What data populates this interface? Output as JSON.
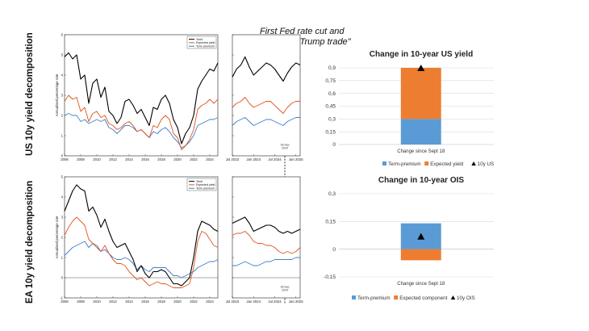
{
  "row_labels": {
    "us": "US 10y yield decomposition",
    "ea": "EA 10y yield decomposition"
  },
  "annotation": {
    "line1": "First Fed rate cut and",
    "line2": "start of \"Trump trade\""
  },
  "marker_label": {
    "us": [
      "18-Sep",
      "2024"
    ],
    "ea": [
      "18-Sep",
      "2024"
    ]
  },
  "colors": {
    "yield": "#000000",
    "expected": "#e0541e",
    "term": "#3f7fc8",
    "bar_term": "#5b9bd5",
    "bar_expected": "#ed7d31",
    "marker": "#000000",
    "grid": "#d9d9d9"
  },
  "chart_data": [
    {
      "id": "us_long",
      "type": "line",
      "ylabel": "Annualised percentage rate",
      "xlim": [
        2006,
        2025
      ],
      "ylim": [
        0,
        6
      ],
      "xticks": [
        "2006",
        "2008",
        "2010",
        "2012",
        "2014",
        "2016",
        "2018",
        "2020",
        "2022",
        "2024"
      ],
      "yticks": [
        "0",
        "1",
        "2",
        "3",
        "4",
        "5",
        "6"
      ],
      "legend": [
        "Yield",
        "Expected yield",
        "Term premium"
      ],
      "legend_position": "top-right",
      "x": [
        2006,
        2006.5,
        2007,
        2007.5,
        2008,
        2008.5,
        2009,
        2009.5,
        2010,
        2010.5,
        2011,
        2011.5,
        2012,
        2012.5,
        2013,
        2013.5,
        2014,
        2014.5,
        2015,
        2015.5,
        2016,
        2016.5,
        2017,
        2017.5,
        2018,
        2018.5,
        2019,
        2019.5,
        2020,
        2020.5,
        2021,
        2021.5,
        2022,
        2022.5,
        2023,
        2023.5,
        2024,
        2024.5,
        2025
      ],
      "series": [
        {
          "name": "Yield",
          "values": [
            4.9,
            5.1,
            4.8,
            5.0,
            3.8,
            4.0,
            2.6,
            3.6,
            3.8,
            2.9,
            3.4,
            2.2,
            2.0,
            1.6,
            1.9,
            2.7,
            2.8,
            2.5,
            2.1,
            2.3,
            1.9,
            1.5,
            2.4,
            2.3,
            2.8,
            3.0,
            2.6,
            1.8,
            1.4,
            0.6,
            1.1,
            1.4,
            2.0,
            3.3,
            3.7,
            4.0,
            4.3,
            4.2,
            4.6
          ]
        },
        {
          "name": "Expected yield",
          "values": [
            2.7,
            3.0,
            2.8,
            2.9,
            2.2,
            2.4,
            1.7,
            2.1,
            2.2,
            1.9,
            2.0,
            1.6,
            1.5,
            1.3,
            1.4,
            1.6,
            1.7,
            1.5,
            1.2,
            1.3,
            1.1,
            0.9,
            1.5,
            1.4,
            1.8,
            2.0,
            1.8,
            1.1,
            0.9,
            0.3,
            0.5,
            0.8,
            1.3,
            2.3,
            2.5,
            2.6,
            2.8,
            2.6,
            2.8
          ]
        },
        {
          "name": "Term premium",
          "values": [
            2.0,
            2.1,
            2.0,
            2.0,
            1.7,
            1.8,
            1.6,
            1.7,
            1.8,
            1.7,
            1.8,
            1.4,
            1.3,
            1.1,
            1.3,
            1.5,
            1.5,
            1.4,
            1.2,
            1.3,
            1.1,
            0.9,
            1.2,
            1.1,
            1.3,
            1.4,
            1.2,
            0.9,
            0.7,
            0.4,
            0.5,
            0.7,
            1.0,
            1.5,
            1.6,
            1.7,
            1.8,
            1.8,
            1.9
          ]
        }
      ]
    },
    {
      "id": "us_short",
      "type": "line",
      "xticks": [
        "Jul 2023",
        "Jan 2024",
        "Jul 2024",
        "Jan 2025"
      ],
      "xlim": [
        2023.5,
        2025.1
      ],
      "ylim": [
        0,
        6
      ],
      "x": [
        2023.5,
        2023.6,
        2023.7,
        2023.8,
        2023.9,
        2024.0,
        2024.1,
        2024.2,
        2024.3,
        2024.4,
        2024.5,
        2024.6,
        2024.7,
        2024.8,
        2024.9,
        2025.0,
        2025.1
      ],
      "series": [
        {
          "name": "Yield",
          "values": [
            3.9,
            4.3,
            4.5,
            4.9,
            4.4,
            4.0,
            4.2,
            4.4,
            4.6,
            4.5,
            4.3,
            4.0,
            3.7,
            4.1,
            4.4,
            4.6,
            4.5
          ]
        },
        {
          "name": "Expected yield",
          "values": [
            2.4,
            2.6,
            2.7,
            2.9,
            2.6,
            2.4,
            2.5,
            2.6,
            2.7,
            2.7,
            2.5,
            2.3,
            2.1,
            2.4,
            2.6,
            2.7,
            2.7
          ]
        },
        {
          "name": "Term premium",
          "values": [
            1.5,
            1.7,
            1.8,
            1.9,
            1.7,
            1.5,
            1.6,
            1.7,
            1.8,
            1.8,
            1.7,
            1.6,
            1.5,
            1.7,
            1.8,
            1.9,
            1.9
          ]
        }
      ]
    },
    {
      "id": "ea_long",
      "type": "line",
      "ylabel": "Annualised percentage rate",
      "xlim": [
        2006,
        2025
      ],
      "ylim": [
        -1,
        5
      ],
      "xticks": [
        "2006",
        "2008",
        "2010",
        "2012",
        "2014",
        "2016",
        "2018",
        "2020",
        "2022",
        "2024"
      ],
      "yticks": [
        "-1",
        "0",
        "1",
        "2",
        "3",
        "4",
        "5"
      ],
      "legend": [
        "Yield",
        "Expected yield",
        "Term premium"
      ],
      "legend_position": "top-right",
      "x": [
        2006,
        2006.5,
        2007,
        2007.5,
        2008,
        2008.5,
        2009,
        2009.5,
        2010,
        2010.5,
        2011,
        2011.5,
        2012,
        2012.5,
        2013,
        2013.5,
        2014,
        2014.5,
        2015,
        2015.5,
        2016,
        2016.5,
        2017,
        2017.5,
        2018,
        2018.5,
        2019,
        2019.5,
        2020,
        2020.5,
        2021,
        2021.5,
        2022,
        2022.5,
        2023,
        2023.5,
        2024,
        2024.5,
        2025
      ],
      "series": [
        {
          "name": "Yield",
          "values": [
            3.3,
            3.8,
            4.3,
            4.6,
            4.4,
            4.3,
            3.3,
            3.5,
            3.1,
            2.5,
            2.9,
            2.3,
            1.8,
            1.5,
            1.6,
            1.7,
            1.3,
            0.9,
            0.3,
            0.6,
            0.2,
            0.0,
            0.3,
            0.3,
            0.4,
            0.3,
            0.0,
            -0.3,
            -0.3,
            -0.4,
            -0.2,
            0.0,
            1.0,
            2.3,
            2.8,
            2.7,
            2.6,
            2.4,
            2.3
          ]
        },
        {
          "name": "Expected yield",
          "values": [
            2.1,
            2.5,
            2.8,
            3.0,
            2.8,
            2.6,
            1.9,
            1.7,
            1.5,
            1.3,
            1.6,
            1.2,
            0.9,
            0.7,
            0.7,
            0.6,
            0.3,
            0.1,
            -0.1,
            0.0,
            -0.2,
            -0.4,
            -0.3,
            -0.2,
            -0.3,
            -0.3,
            -0.4,
            -0.5,
            -0.5,
            -0.5,
            -0.4,
            -0.3,
            0.5,
            1.8,
            2.3,
            2.2,
            1.9,
            1.6,
            1.5
          ]
        },
        {
          "name": "Term premium",
          "values": [
            1.1,
            1.3,
            1.5,
            1.6,
            1.7,
            1.8,
            1.5,
            1.7,
            1.6,
            1.3,
            1.4,
            1.2,
            1.0,
            0.9,
            0.9,
            1.0,
            0.9,
            0.7,
            0.4,
            0.6,
            0.4,
            0.3,
            0.5,
            0.5,
            0.5,
            0.5,
            0.3,
            0.1,
            0.1,
            0.0,
            0.1,
            0.2,
            0.3,
            0.5,
            0.6,
            0.7,
            0.8,
            0.8,
            0.9
          ]
        }
      ]
    },
    {
      "id": "ea_short",
      "type": "line",
      "xticks": [
        "Jul 2023",
        "Jan 2024",
        "Jul 2024",
        "Jan 2025"
      ],
      "xlim": [
        2023.5,
        2025.1
      ],
      "ylim": [
        -1,
        5
      ],
      "x": [
        2023.5,
        2023.6,
        2023.7,
        2023.8,
        2023.9,
        2024.0,
        2024.1,
        2024.2,
        2024.3,
        2024.4,
        2024.5,
        2024.6,
        2024.7,
        2024.8,
        2024.9,
        2025.0,
        2025.1
      ],
      "series": [
        {
          "name": "Yield",
          "values": [
            2.7,
            2.8,
            2.9,
            3.0,
            2.7,
            2.3,
            2.4,
            2.5,
            2.6,
            2.6,
            2.5,
            2.3,
            2.2,
            2.3,
            2.2,
            2.3,
            2.4
          ]
        },
        {
          "name": "Expected yield",
          "values": [
            2.1,
            2.2,
            2.2,
            2.3,
            2.1,
            1.8,
            1.7,
            1.7,
            1.6,
            1.6,
            1.5,
            1.3,
            1.2,
            1.3,
            1.2,
            1.3,
            1.5
          ]
        },
        {
          "name": "Term premium",
          "values": [
            0.6,
            0.6,
            0.7,
            0.8,
            0.7,
            0.6,
            0.6,
            0.7,
            0.8,
            0.8,
            0.9,
            0.9,
            0.9,
            0.9,
            0.9,
            1.0,
            1.0
          ]
        }
      ]
    },
    {
      "id": "us_bar",
      "type": "bar",
      "title": "Change in 10-year US yield",
      "categories": [
        "Change since Sept 18"
      ],
      "ylim": [
        0,
        0.9
      ],
      "yticks": [
        "0",
        "0,15",
        "0,3",
        "0,45",
        "0,6",
        "0,75",
        "0,9"
      ],
      "series": [
        {
          "name": "Term-premium",
          "values": [
            0.3
          ]
        },
        {
          "name": "Expected yield",
          "values": [
            0.6
          ]
        }
      ],
      "marker": {
        "name": "10y US",
        "value": 0.9
      },
      "legend": [
        "Term-premium",
        "Expected yield",
        "10y US"
      ],
      "legend_position": "bottom"
    },
    {
      "id": "ea_bar",
      "type": "bar",
      "title": "Change in 10-year OIS",
      "categories": [
        "Change since Sept 18"
      ],
      "ylim": [
        -0.15,
        0.3
      ],
      "yticks": [
        "-0,15",
        "0",
        "0,15",
        "0,3"
      ],
      "series": [
        {
          "name": "Term-premium",
          "values": [
            0.14
          ]
        },
        {
          "name": "Expected component",
          "values": [
            -0.06
          ]
        }
      ],
      "marker": {
        "name": "10y OIS",
        "value": 0.07
      },
      "legend": [
        "Term-premium",
        "Expected component",
        "10y OIS"
      ],
      "legend_position": "bottom"
    }
  ]
}
